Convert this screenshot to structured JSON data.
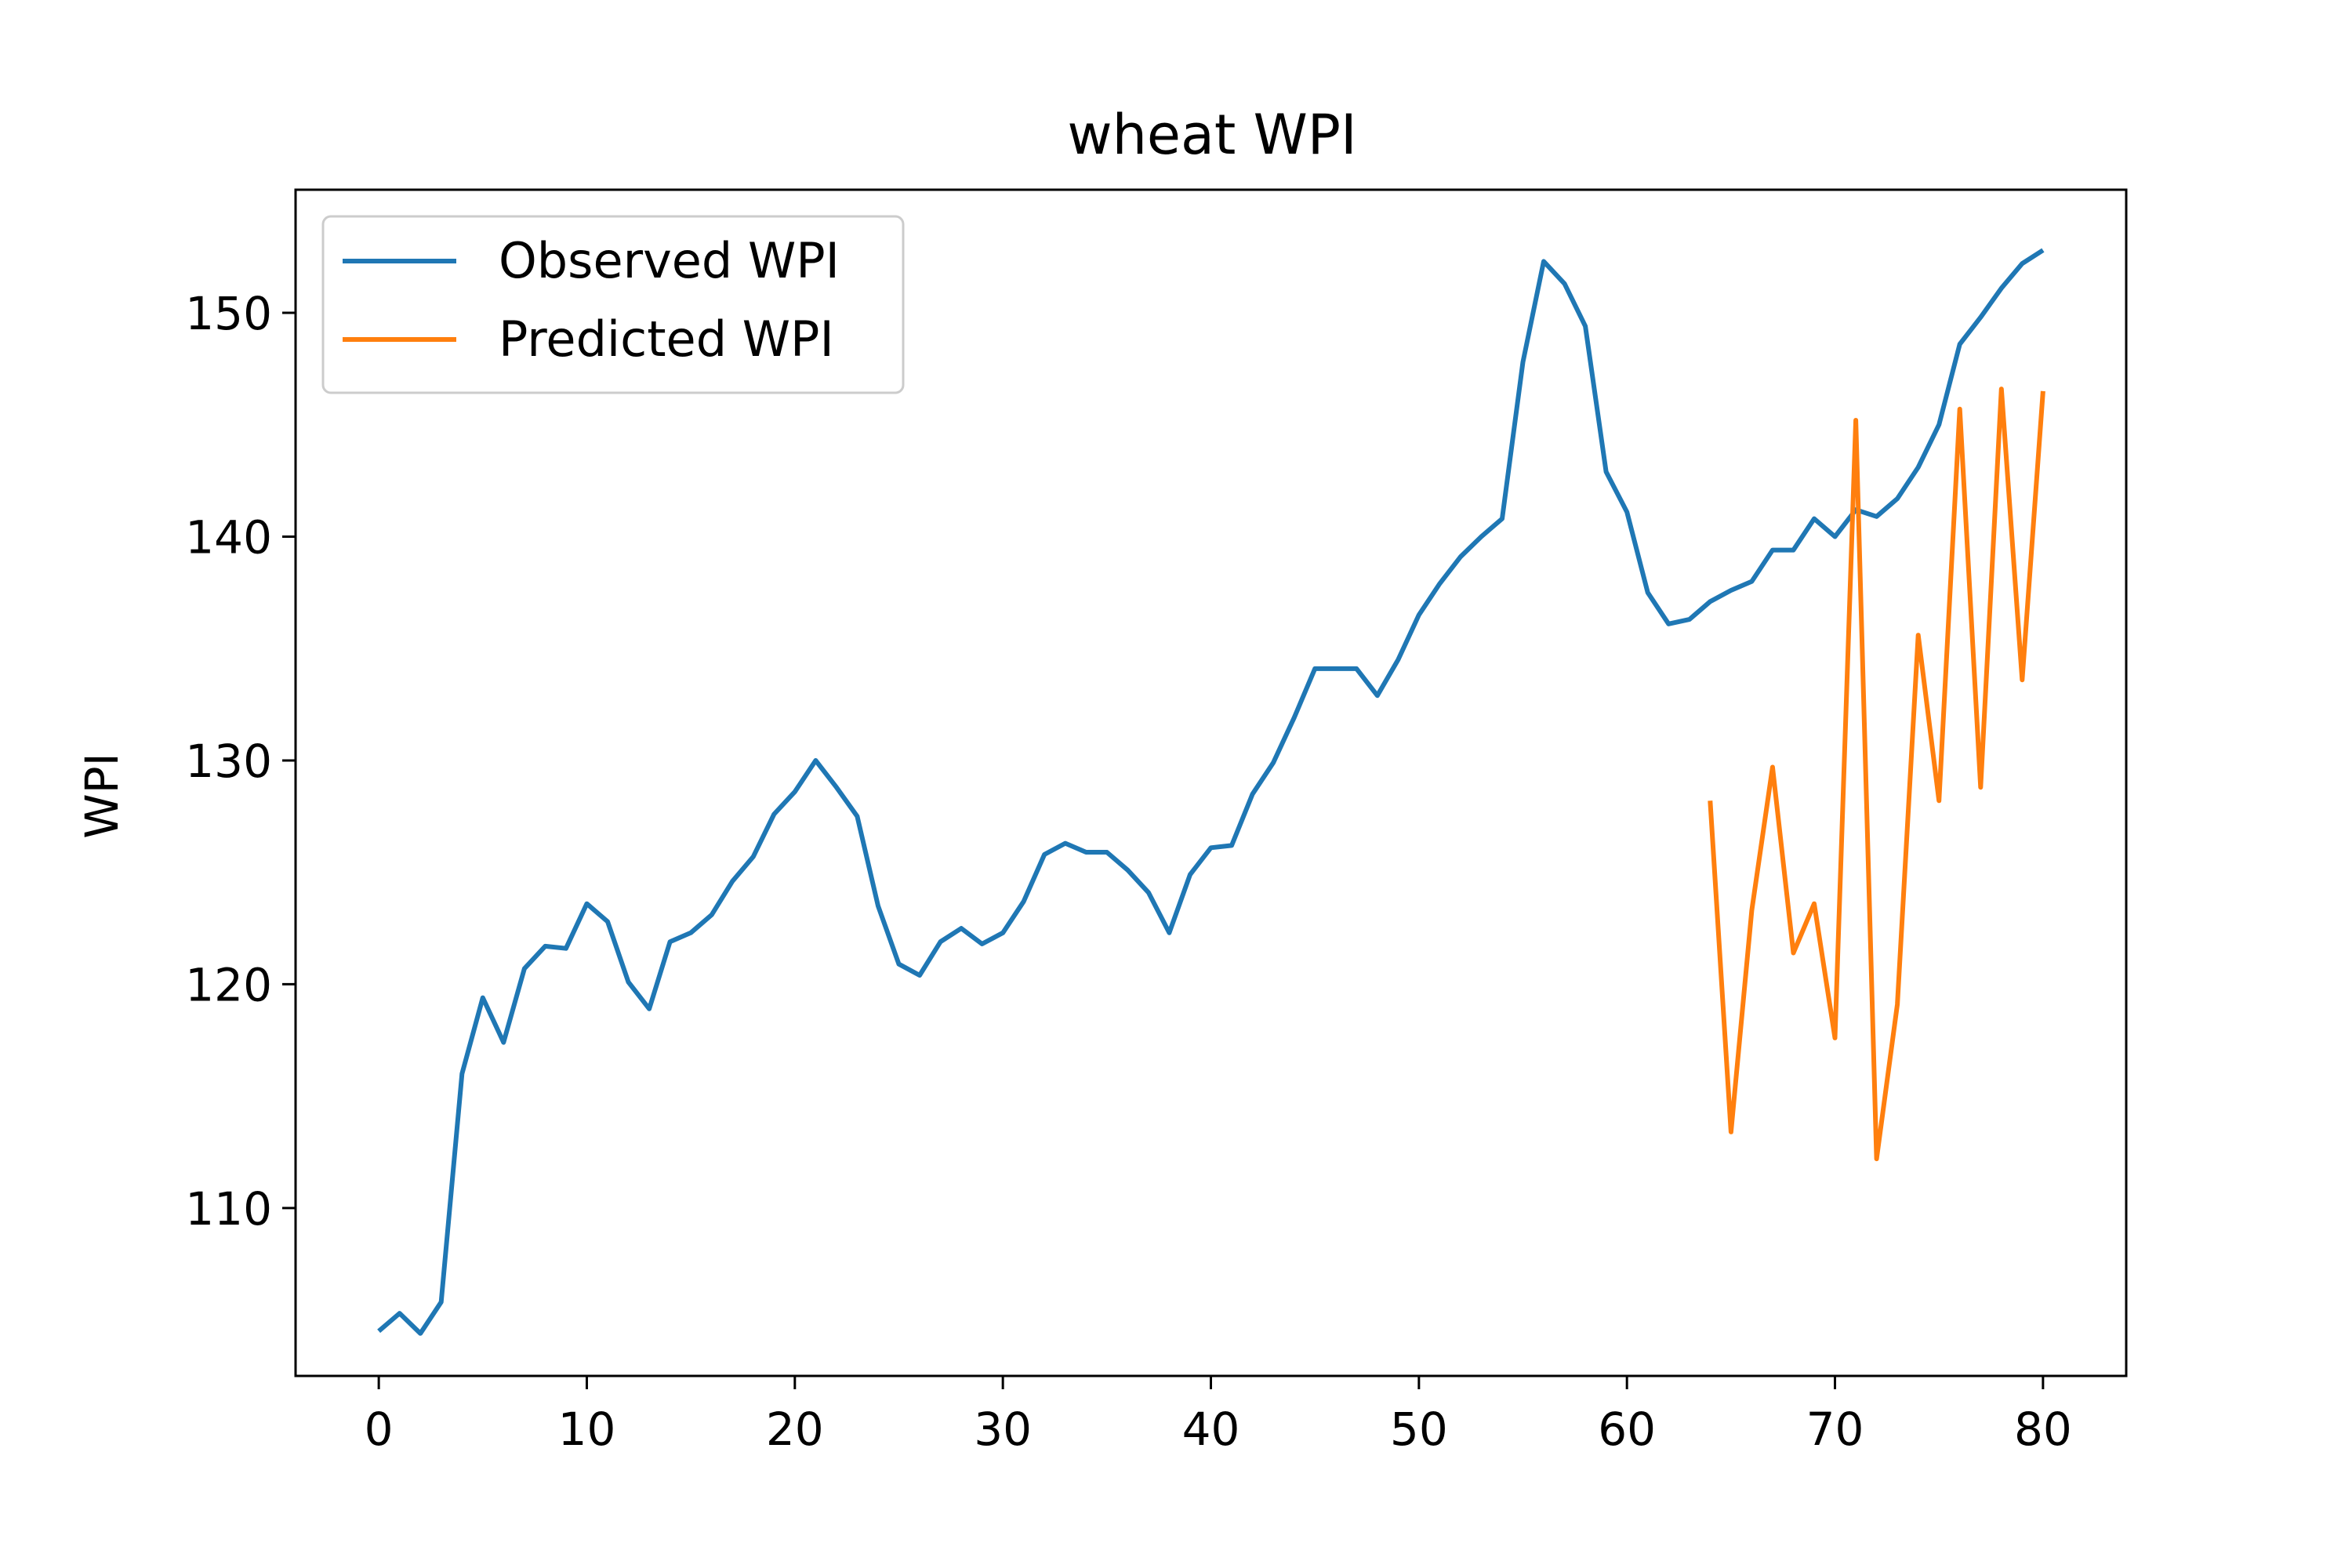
{
  "chart_data": {
    "type": "line",
    "title": "wheat WPI",
    "xlabel": "",
    "ylabel": "WPI",
    "xlim": [
      -4,
      84
    ],
    "ylim": [
      102.5,
      155.5
    ],
    "xticks": [
      0,
      10,
      20,
      30,
      40,
      50,
      60,
      70,
      80
    ],
    "yticks": [
      110,
      120,
      130,
      140,
      150
    ],
    "grid": false,
    "legend_position": "upper left",
    "series": [
      {
        "name": "Observed WPI",
        "color": "#1f77b4",
        "x": [
          0,
          1,
          2,
          3,
          4,
          5,
          6,
          7,
          8,
          9,
          10,
          11,
          12,
          13,
          14,
          15,
          16,
          17,
          18,
          19,
          20,
          21,
          22,
          23,
          24,
          25,
          26,
          27,
          28,
          29,
          30,
          31,
          32,
          33,
          34,
          35,
          36,
          37,
          38,
          39,
          40,
          41,
          42,
          43,
          44,
          45,
          46,
          47,
          48,
          49,
          50,
          51,
          52,
          53,
          54,
          55,
          56,
          57,
          58,
          59,
          60,
          61,
          62,
          63,
          64,
          65,
          66,
          67,
          68,
          69,
          70,
          71,
          72,
          73,
          74,
          75,
          76,
          77,
          78,
          79,
          80
        ],
        "y": [
          104.5,
          105.3,
          104.4,
          105.8,
          116.0,
          119.4,
          117.4,
          120.7,
          121.7,
          121.6,
          123.6,
          122.8,
          120.1,
          118.9,
          121.9,
          122.3,
          123.1,
          124.6,
          125.7,
          127.6,
          128.6,
          130.0,
          128.8,
          127.5,
          123.5,
          120.9,
          120.4,
          121.9,
          122.5,
          121.8,
          122.3,
          123.7,
          125.8,
          126.3,
          125.9,
          125.9,
          125.1,
          124.1,
          122.3,
          124.9,
          126.1,
          126.2,
          128.5,
          129.9,
          131.9,
          134.1,
          134.1,
          134.1,
          132.9,
          134.5,
          136.5,
          137.9,
          139.1,
          140.0,
          140.8,
          147.8,
          152.3,
          151.3,
          149.4,
          142.9,
          141.1,
          137.5,
          136.1,
          136.3,
          137.1,
          137.6,
          138.0,
          139.4,
          139.4,
          140.8,
          140.0,
          141.2,
          140.9,
          141.7,
          143.1,
          145.0,
          148.6,
          149.8,
          151.1,
          152.2,
          152.8
        ]
      },
      {
        "name": "Predicted WPI",
        "color": "#ff7f0e",
        "x": [
          64,
          65,
          66,
          67,
          68,
          69,
          70,
          71,
          72,
          73,
          74,
          75,
          76,
          77,
          78,
          79,
          80
        ],
        "y": [
          128.2,
          113.4,
          123.3,
          129.7,
          121.4,
          123.6,
          117.6,
          145.2,
          112.2,
          119.1,
          135.6,
          128.2,
          145.7,
          128.8,
          146.6,
          133.6,
          146.5
        ]
      }
    ]
  }
}
